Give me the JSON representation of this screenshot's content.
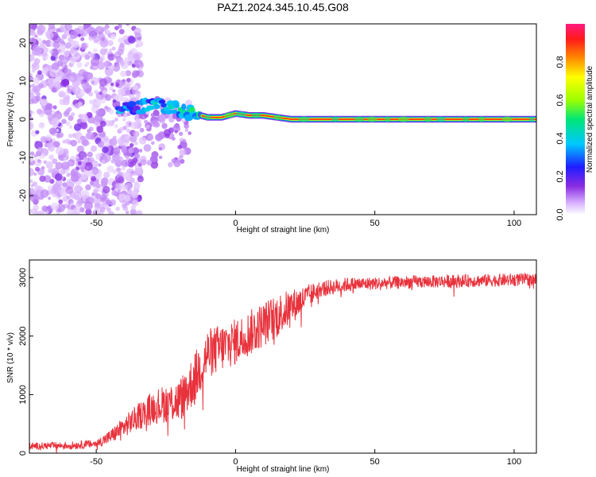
{
  "figure_title": "PAZ1.2024.345.10.45.G08",
  "colors": {
    "snr_line": "#e8323c",
    "ridge_core": "#e0202a",
    "axis": "#000000",
    "background": "#ffffff"
  },
  "chart_data": [
    {
      "type": "heatmap",
      "title": "PAZ1.2024.345.10.45.G08",
      "xlabel": "Height of straight line (km)",
      "ylabel": "Frequency (Hz)",
      "xlim": [
        -74,
        108
      ],
      "ylim": [
        -25,
        25
      ],
      "xticks": [
        -50,
        0,
        50,
        100
      ],
      "yticks": [
        -20,
        -10,
        0,
        10,
        20
      ],
      "grid": false,
      "colorbar": {
        "label": "Normalized spectral amplitude",
        "range": [
          0,
          1
        ],
        "ticks": [
          "0.0",
          "0.2",
          "0.4",
          "0.6",
          "0.8"
        ],
        "colors": [
          "#ffffff",
          "#d9b3ff",
          "#8a2be2",
          "#1e1eff",
          "#00c8ff",
          "#00e676",
          "#9cff00",
          "#ffff00",
          "#ff8c00",
          "#ff1a1a",
          "#ff1a80"
        ]
      },
      "ridge": {
        "description_points": [
          [
            -40,
            2.5
          ],
          [
            -33,
            3.5
          ],
          [
            -28,
            4
          ],
          [
            -22,
            3
          ],
          [
            -15,
            1.5
          ],
          [
            -10,
            0.5
          ],
          [
            -5,
            0.5
          ],
          [
            0,
            1.5
          ],
          [
            5,
            1
          ],
          [
            10,
            1
          ],
          [
            15,
            0.5
          ],
          [
            20,
            0
          ],
          [
            40,
            0
          ],
          [
            60,
            0
          ],
          [
            80,
            0
          ],
          [
            100,
            0
          ],
          [
            108,
            0
          ]
        ],
        "peak_amplitude": 1.0
      }
    },
    {
      "type": "line",
      "xlabel": "Height of straight line (km)",
      "ylabel": "SNR (10 * v/v)",
      "xlim": [
        -74,
        108
      ],
      "ylim": [
        0,
        3300
      ],
      "xticks": [
        -50,
        0,
        50,
        100
      ],
      "yticks": [
        0,
        1000,
        2000,
        3000
      ],
      "grid": false,
      "series": [
        {
          "trend_x": [
            -74,
            -60,
            -50,
            -45,
            -40,
            -35,
            -30,
            -25,
            -20,
            -15,
            -10,
            -5,
            0,
            5,
            10,
            15,
            20,
            25,
            30,
            40,
            50,
            60,
            70,
            80,
            90,
            100,
            108
          ],
          "trend_y": [
            120,
            130,
            160,
            280,
            450,
            620,
            780,
            850,
            900,
            1250,
            1700,
            1800,
            1900,
            2050,
            2200,
            2350,
            2500,
            2650,
            2800,
            2880,
            2900,
            2920,
            2930,
            2940,
            2950,
            2960,
            2970
          ],
          "noise_x": [
            -74,
            -50,
            -45,
            -40,
            -30,
            -20,
            -15,
            0,
            15,
            20,
            30,
            50,
            108
          ],
          "noise_amp": [
            60,
            70,
            120,
            180,
            280,
            380,
            450,
            400,
            380,
            300,
            140,
            110,
            110
          ]
        }
      ]
    }
  ]
}
